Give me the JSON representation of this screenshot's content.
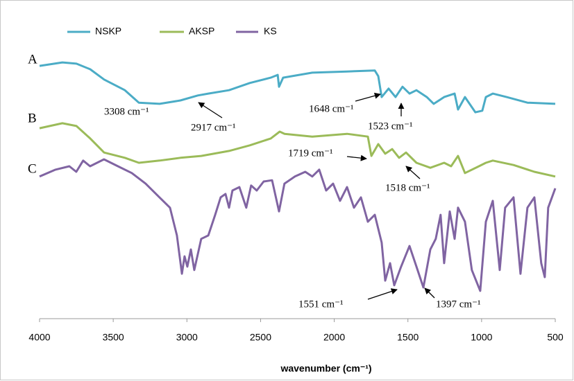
{
  "chart_data": {
    "type": "line",
    "xlabel": "wavenumber (cm⁻¹)",
    "xlim": [
      4000,
      500
    ],
    "xticks": [
      4000,
      3500,
      3000,
      2500,
      2000,
      1500,
      1000,
      500
    ],
    "ylim": [
      0,
      100
    ],
    "legend": "top",
    "series": [
      {
        "name": "NSKP",
        "color": "#4bacc6",
        "x": [
          4000,
          3845,
          3750,
          3656,
          3562,
          3421,
          3326,
          3185,
          3044,
          2926,
          2855,
          2714,
          2573,
          2431,
          2384,
          2375,
          2347,
          2149,
          1913,
          1725,
          1701,
          1678,
          1631,
          1584,
          1537,
          1489,
          1442,
          1372,
          1325,
          1254,
          1183,
          1160,
          1113,
          1042,
          995,
          971,
          924,
          830,
          689,
          500
        ],
        "values": [
          81.1,
          82.2,
          81.8,
          80,
          76.7,
          73.3,
          69.3,
          68.9,
          70,
          71.6,
          72.2,
          73.3,
          75.6,
          77.3,
          78.2,
          74.4,
          77.3,
          78.9,
          79.3,
          79.6,
          77.8,
          71.1,
          73.8,
          71.1,
          74.4,
          72.2,
          73.3,
          71.1,
          68.9,
          71.1,
          72.2,
          67.1,
          71.1,
          66.2,
          66.7,
          71.1,
          72.2,
          71.1,
          69.3,
          68.9
        ]
      },
      {
        "name": "AKSP",
        "color": "#9bbb59",
        "x": [
          4000,
          3845,
          3750,
          3656,
          3562,
          3421,
          3326,
          3185,
          3044,
          2903,
          2714,
          2573,
          2431,
          2370,
          2337,
          2149,
          1913,
          1772,
          1748,
          1701,
          1654,
          1607,
          1560,
          1513,
          1442,
          1348,
          1254,
          1207,
          1160,
          1113,
          1018,
          971,
          924,
          783,
          642,
          500
        ],
        "values": [
          61.1,
          62.7,
          61.8,
          57.8,
          53.3,
          51.6,
          50,
          50.7,
          51.6,
          52.2,
          53.8,
          55.6,
          57.8,
          60,
          59.3,
          58.4,
          59.3,
          58.4,
          52.2,
          56,
          52.9,
          54.4,
          51.6,
          53.3,
          50,
          48.4,
          50,
          48.9,
          52.2,
          46.7,
          48.9,
          50,
          50.7,
          49.3,
          47.1,
          45.6
        ]
      },
      {
        "name": "KS",
        "color": "#8064a2",
        "x": [
          4000,
          3892,
          3798,
          3751,
          3704,
          3657,
          3563,
          3468,
          3374,
          3280,
          3186,
          3115,
          3068,
          3034,
          3016,
          2997,
          2973,
          2950,
          2903,
          2855,
          2808,
          2771,
          2738,
          2714,
          2691,
          2644,
          2597,
          2564,
          2526,
          2479,
          2422,
          2375,
          2338,
          2267,
          2197,
          2149,
          2102,
          2055,
          2008,
          1961,
          1913,
          1866,
          1819,
          1772,
          1725,
          1678,
          1654,
          1621,
          1593,
          1546,
          1489,
          1442,
          1395,
          1348,
          1311,
          1278,
          1254,
          1216,
          1183,
          1160,
          1113,
          1066,
          1009,
          971,
          924,
          877,
          840,
          783,
          736,
          689,
          642,
          595,
          571,
          548,
          500
        ],
        "values": [
          45.6,
          47.8,
          48.9,
          47.1,
          50.7,
          48.9,
          51.1,
          48.9,
          46.7,
          43.3,
          38.9,
          35.6,
          26.7,
          14.4,
          20,
          16.7,
          22.2,
          15.6,
          25.6,
          26.7,
          33.3,
          38.9,
          40,
          35.6,
          41.1,
          42.2,
          35.6,
          42.7,
          41.1,
          44,
          44.4,
          34.4,
          43.3,
          45.6,
          47.1,
          45.6,
          47.8,
          41.1,
          43.3,
          37.8,
          42.2,
          35.6,
          38.9,
          31.1,
          33.3,
          24.4,
          12.2,
          17.8,
          10.7,
          16.7,
          23.3,
          16.7,
          10,
          22.2,
          25.6,
          33.3,
          17.8,
          34.4,
          25.6,
          35.6,
          31.1,
          15.6,
          8.9,
          31.1,
          37.8,
          15.6,
          35.6,
          38.9,
          14.4,
          35.6,
          38.9,
          17.8,
          13.3,
          35.6,
          41.8
        ]
      }
    ],
    "curve_labels": [
      "A",
      "B",
      "C"
    ],
    "annotations": [
      "3308 cm⁻¹",
      "2917 cm⁻¹",
      "1648 cm⁻¹",
      "1523 cm⁻¹",
      "1719 cm⁻¹",
      "1518 cm⁻¹",
      "1551 cm⁻¹",
      "1397 cm⁻¹"
    ]
  }
}
